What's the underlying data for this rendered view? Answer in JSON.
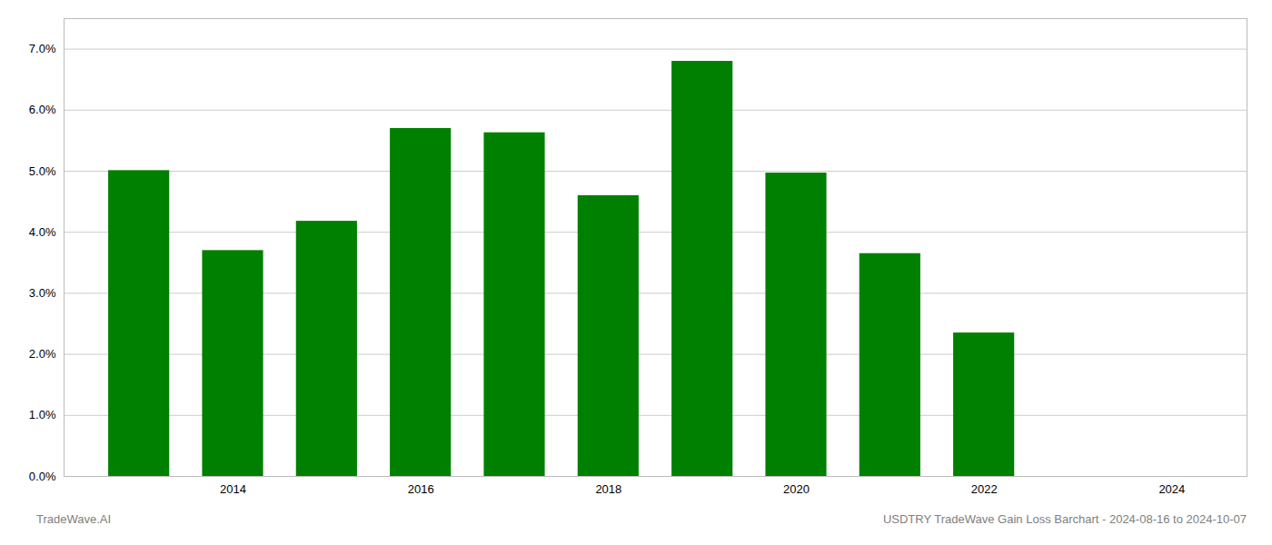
{
  "chart_data": {
    "type": "bar",
    "x": [
      2013,
      2014,
      2015,
      2016,
      2017,
      2018,
      2019,
      2020,
      2021,
      2022
    ],
    "values": [
      0.0501,
      0.037,
      0.0418,
      0.057,
      0.0563,
      0.046,
      0.068,
      0.0497,
      0.0365,
      0.0235
    ],
    "color": "#008000",
    "xlim": [
      2012.2,
      2024.8
    ],
    "xticks": [
      2014,
      2016,
      2018,
      2020,
      2022,
      2024
    ],
    "ylim": [
      0,
      0.075
    ],
    "yticks": [
      {
        "value": 0,
        "label": "0.0%"
      },
      {
        "value": 0.01,
        "label": "1.0%"
      },
      {
        "value": 0.02,
        "label": "2.0%"
      },
      {
        "value": 0.03,
        "label": "3.0%"
      },
      {
        "value": 0.04,
        "label": "4.0%"
      },
      {
        "value": 0.05,
        "label": "5.0%"
      },
      {
        "value": 0.06,
        "label": "6.0%"
      },
      {
        "value": 0.07,
        "label": "7.0%"
      }
    ],
    "grid": true,
    "annotations": [
      "TradeWave.AI",
      "USDTRY TradeWave Gain Loss Barchart - 2024-08-16 to 2024-10-07"
    ]
  }
}
